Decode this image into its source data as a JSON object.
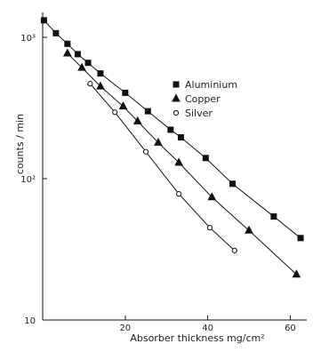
{
  "chart_data": {
    "type": "scatter",
    "title": "",
    "xlabel": "Absorber thickness  mg/cm²",
    "ylabel": "counts / min",
    "xlim": [
      0,
      64
    ],
    "ylim": [
      10,
      1500
    ],
    "y_scale": "log",
    "grid": false,
    "legend_position": "top-right",
    "x_ticks": [
      20,
      40,
      60
    ],
    "x_tick_labels": [
      "20",
      "40",
      "60"
    ],
    "y_ticks": [
      10,
      100,
      1000
    ],
    "y_tick_labels": [
      "10",
      "10²",
      "10³"
    ],
    "series": [
      {
        "name": "Aluminium",
        "marker": "square",
        "points": [
          {
            "x": 0.3,
            "y": 1320
          },
          {
            "x": 3.2,
            "y": 1070
          },
          {
            "x": 6.0,
            "y": 900
          },
          {
            "x": 8.5,
            "y": 760
          },
          {
            "x": 11.0,
            "y": 660
          },
          {
            "x": 14.0,
            "y": 555
          },
          {
            "x": 20.0,
            "y": 405
          },
          {
            "x": 25.5,
            "y": 300
          },
          {
            "x": 31.0,
            "y": 222
          },
          {
            "x": 33.5,
            "y": 196
          },
          {
            "x": 39.5,
            "y": 140
          },
          {
            "x": 46.0,
            "y": 92
          },
          {
            "x": 56.0,
            "y": 54
          },
          {
            "x": 62.5,
            "y": 38
          }
        ]
      },
      {
        "name": "Copper",
        "marker": "triangle",
        "points": [
          {
            "x": 6.0,
            "y": 770
          },
          {
            "x": 9.5,
            "y": 610
          },
          {
            "x": 14.0,
            "y": 450
          },
          {
            "x": 19.5,
            "y": 325
          },
          {
            "x": 23.0,
            "y": 255
          },
          {
            "x": 28.0,
            "y": 180
          },
          {
            "x": 33.0,
            "y": 130
          },
          {
            "x": 41.0,
            "y": 74
          },
          {
            "x": 50.0,
            "y": 43
          },
          {
            "x": 61.5,
            "y": 21
          }
        ]
      },
      {
        "name": "Silver",
        "marker": "circle",
        "points": [
          {
            "x": 11.5,
            "y": 470
          },
          {
            "x": 17.5,
            "y": 295
          },
          {
            "x": 25.0,
            "y": 155
          },
          {
            "x": 33.0,
            "y": 78
          },
          {
            "x": 40.5,
            "y": 45
          },
          {
            "x": 46.5,
            "y": 31
          }
        ]
      }
    ]
  }
}
